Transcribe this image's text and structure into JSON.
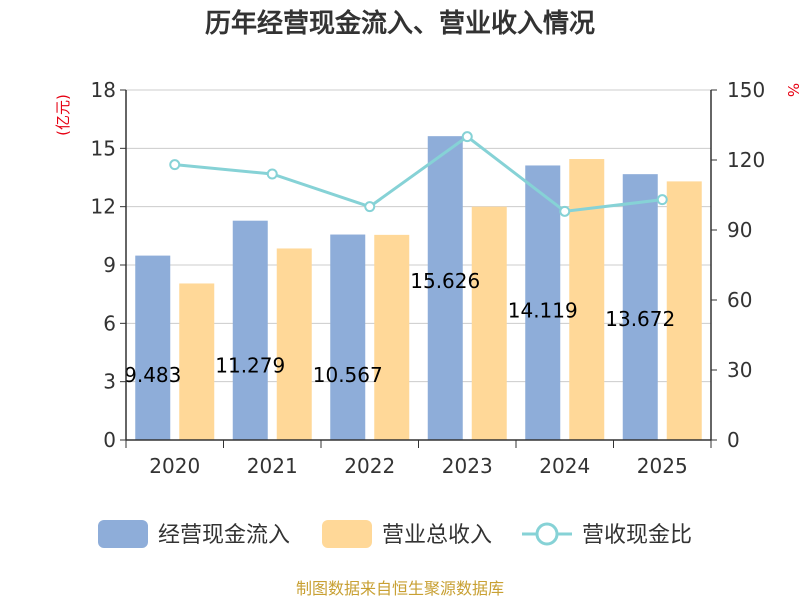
{
  "chart_data": {
    "type": "bar",
    "title": "历年经营现金流入、营业收入情况",
    "categories": [
      "2020",
      "2021",
      "2022",
      "2023",
      "2024",
      "2025"
    ],
    "series": [
      {
        "name": "经营现金流入",
        "kind": "bar",
        "axis": "left",
        "color": "#8eadd9",
        "values": [
          9.483,
          11.279,
          10.567,
          15.626,
          14.119,
          13.672
        ]
      },
      {
        "name": "营业总收入",
        "kind": "bar",
        "axis": "left",
        "color": "#ffd898",
        "values": [
          8.05,
          9.85,
          10.55,
          12.0,
          14.45,
          13.3
        ]
      },
      {
        "name": "营收现金比",
        "kind": "line",
        "axis": "right",
        "color": "#86d2d6",
        "values": [
          118,
          114,
          100,
          130,
          98,
          103
        ]
      }
    ],
    "bar_labels": [
      "9.483",
      "11.279",
      "10.567",
      "15.626",
      "14.119",
      "13.672"
    ],
    "y_left": {
      "unit_label": "(亿元)",
      "ylim": [
        0,
        18
      ],
      "ticks": [
        0,
        3,
        6,
        9,
        12,
        15,
        18
      ]
    },
    "y_right": {
      "unit_label": "%",
      "ylim": [
        0,
        150
      ],
      "ticks": [
        0,
        30,
        60,
        90,
        120,
        150
      ]
    },
    "grid": true,
    "legend_position": "bottom"
  },
  "source_text": "制图数据来自恒生聚源数据库"
}
